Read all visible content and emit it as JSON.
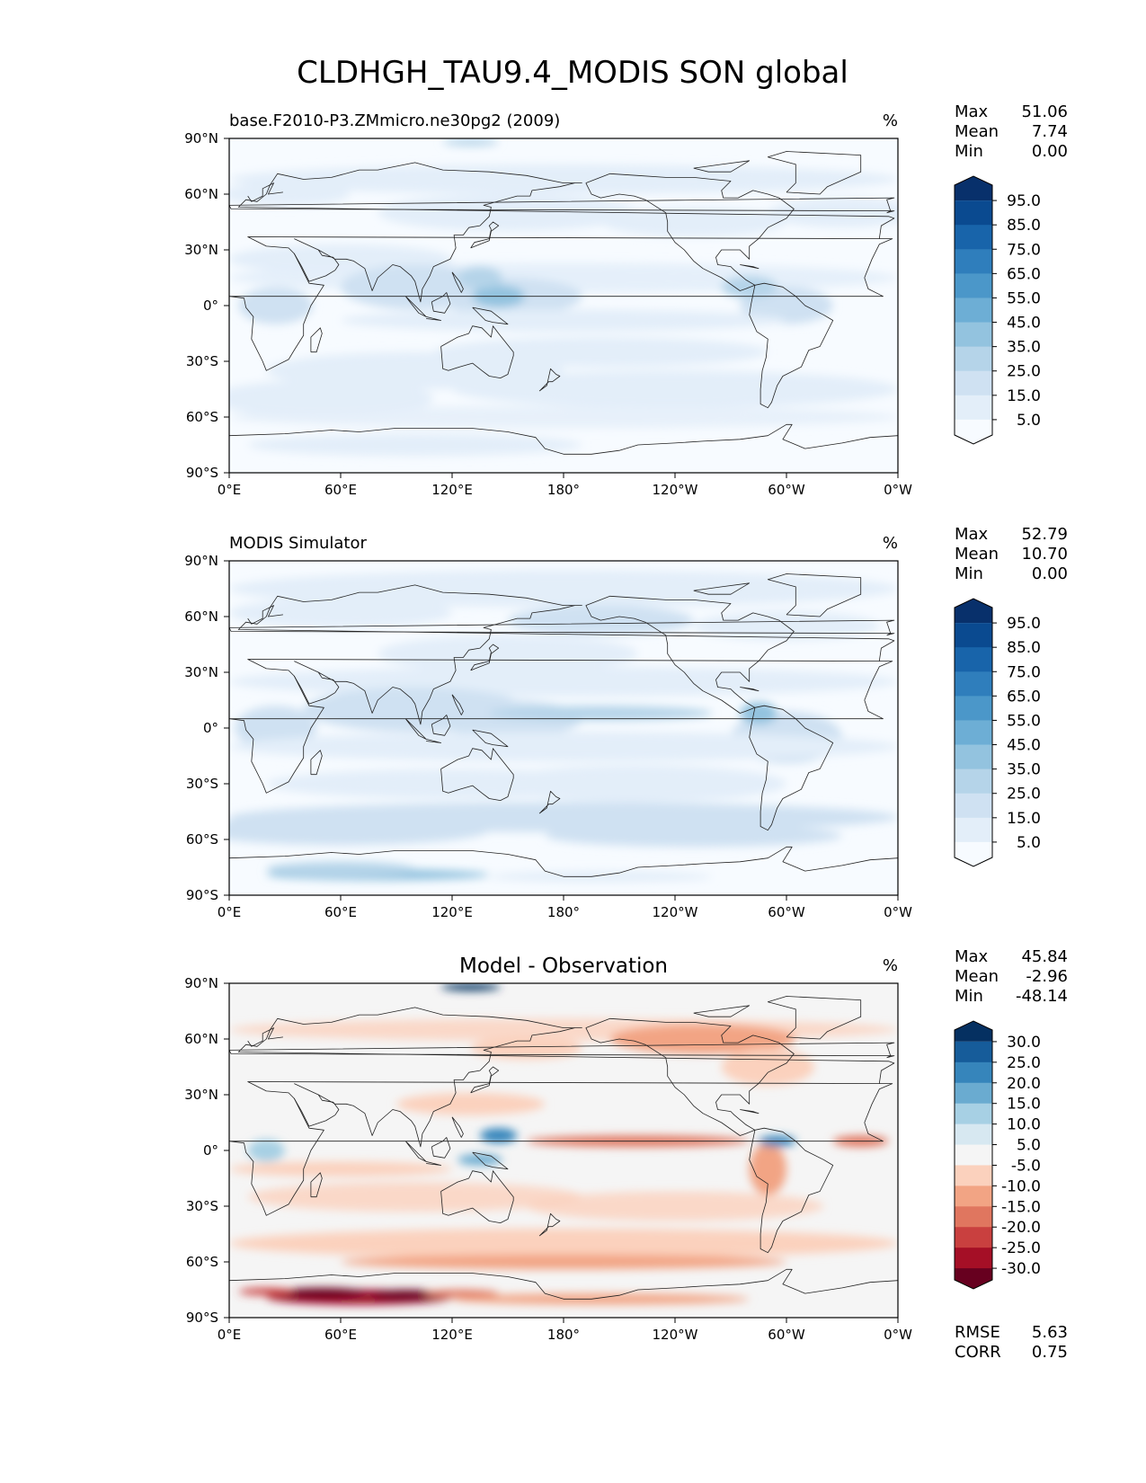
{
  "title": "CLDHGH_TAU9.4_MODIS SON global",
  "chart_data": [
    {
      "type": "heatmap",
      "panel_key": "test",
      "title_left": "base.F2010-P3.ZMmicro.ne30pg2 (2009)",
      "title_center": "",
      "units": "%",
      "stats": [
        {
          "label": "Max",
          "value": "51.06"
        },
        {
          "label": "Mean",
          "value": "7.74"
        },
        {
          "label": "Min",
          "value": "0.00"
        }
      ],
      "colorbar_ticks": [
        "95.0",
        "85.0",
        "75.0",
        "65.0",
        "55.0",
        "45.0",
        "35.0",
        "25.0",
        "15.0",
        "5.0"
      ],
      "colorbar_colors": [
        "#f7fbff",
        "#e3eef9",
        "#cfe1f2",
        "#b5d4e9",
        "#93c3df",
        "#6daed5",
        "#4b97c9",
        "#2f7ebc",
        "#1864aa",
        "#0a4a90",
        "#08306b"
      ],
      "colormap": "Blues",
      "xticks": [
        "0°E",
        "60°E",
        "120°E",
        "180°",
        "120°W",
        "60°W",
        "0°W"
      ],
      "yticks": [
        "90°N",
        "60°N",
        "30°N",
        "0°",
        "30°S",
        "60°S",
        "90°S"
      ],
      "xlim": [
        0,
        360
      ],
      "ylim": [
        -90,
        90
      ],
      "extra_stats": []
    },
    {
      "type": "heatmap",
      "panel_key": "ref",
      "title_left": "MODIS Simulator",
      "title_center": "",
      "units": "%",
      "stats": [
        {
          "label": "Max",
          "value": "52.79"
        },
        {
          "label": "Mean",
          "value": "10.70"
        },
        {
          "label": "Min",
          "value": "0.00"
        }
      ],
      "colorbar_ticks": [
        "95.0",
        "85.0",
        "75.0",
        "65.0",
        "55.0",
        "45.0",
        "35.0",
        "25.0",
        "15.0",
        "5.0"
      ],
      "colorbar_colors": [
        "#f7fbff",
        "#e3eef9",
        "#cfe1f2",
        "#b5d4e9",
        "#93c3df",
        "#6daed5",
        "#4b97c9",
        "#2f7ebc",
        "#1864aa",
        "#0a4a90",
        "#08306b"
      ],
      "colormap": "Blues",
      "xticks": [
        "0°E",
        "60°E",
        "120°E",
        "180°",
        "120°W",
        "60°W",
        "0°W"
      ],
      "yticks": [
        "90°N",
        "60°N",
        "30°N",
        "0°",
        "30°S",
        "60°S",
        "90°S"
      ],
      "xlim": [
        0,
        360
      ],
      "ylim": [
        -90,
        90
      ],
      "extra_stats": []
    },
    {
      "type": "heatmap",
      "panel_key": "diff",
      "title_left": "",
      "title_center": "Model - Observation",
      "units": "%",
      "stats": [
        {
          "label": "Max",
          "value": "45.84"
        },
        {
          "label": "Mean",
          "value": "-2.96"
        },
        {
          "label": "Min",
          "value": "-48.14"
        }
      ],
      "colorbar_ticks": [
        "30.0",
        "25.0",
        "20.0",
        "15.0",
        "10.0",
        "5.0",
        "-5.0",
        "-10.0",
        "-15.0",
        "-20.0",
        "-25.0",
        "-30.0"
      ],
      "colorbar_colors": [
        "#67001f",
        "#a50f26",
        "#c9403f",
        "#e0765f",
        "#f2a484",
        "#fbd1bd",
        "#f5f5f5",
        "#d7e8f1",
        "#a7d0e4",
        "#6aabd0",
        "#3685bb",
        "#165c9a",
        "#053061"
      ],
      "colormap": "RdBu_r",
      "xticks": [
        "0°E",
        "60°E",
        "120°E",
        "180°",
        "120°W",
        "60°W",
        "0°W"
      ],
      "yticks": [
        "90°N",
        "60°N",
        "30°N",
        "0°",
        "30°S",
        "60°S",
        "90°S"
      ],
      "xlim": [
        0,
        360
      ],
      "ylim": [
        -90,
        90
      ],
      "extra_stats": [
        {
          "label": "RMSE",
          "value": "5.63"
        },
        {
          "label": "CORR",
          "value": "0.75"
        }
      ]
    }
  ]
}
